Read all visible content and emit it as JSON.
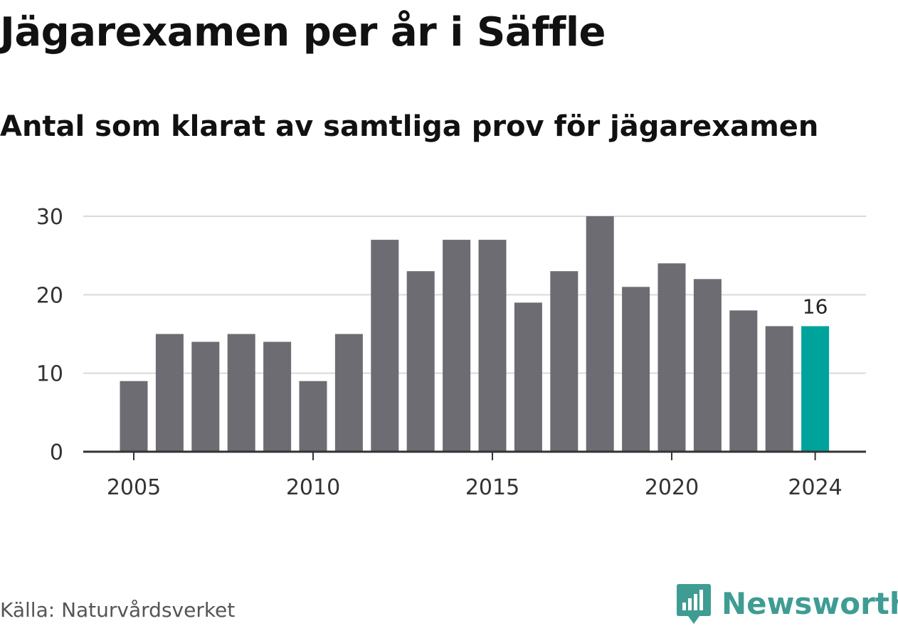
{
  "title": "Jägarexamen per år i Säffle",
  "subtitle": "Antal som klarat av samtliga prov för jägarexamen",
  "source": "Källa: Naturvårdsverket",
  "brand": {
    "name": "Newsworthy",
    "logo_icon": "newsworthy-logo-icon"
  },
  "colors": {
    "bar": "#6d6c73",
    "highlight": "#00a39b",
    "grid": "#d9d9d9",
    "axis": "#333333",
    "brand": "#3f9c93"
  },
  "chart_data": {
    "type": "bar",
    "categories": [
      2005,
      2006,
      2007,
      2008,
      2009,
      2010,
      2011,
      2012,
      2013,
      2014,
      2015,
      2016,
      2017,
      2018,
      2019,
      2020,
      2021,
      2022,
      2023,
      2024
    ],
    "values": [
      9,
      15,
      14,
      15,
      14,
      9,
      15,
      27,
      23,
      27,
      27,
      19,
      23,
      30,
      21,
      24,
      22,
      18,
      16,
      16
    ],
    "highlight_category": 2024,
    "data_labels": [
      {
        "category": 2024,
        "label": "16"
      }
    ],
    "ylim": [
      0,
      30
    ],
    "yticks": [
      0,
      10,
      20,
      30
    ],
    "xticks": [
      2005,
      2010,
      2015,
      2020,
      2024
    ],
    "xlabel": "",
    "ylabel": "",
    "grid": true,
    "legend": "none"
  }
}
